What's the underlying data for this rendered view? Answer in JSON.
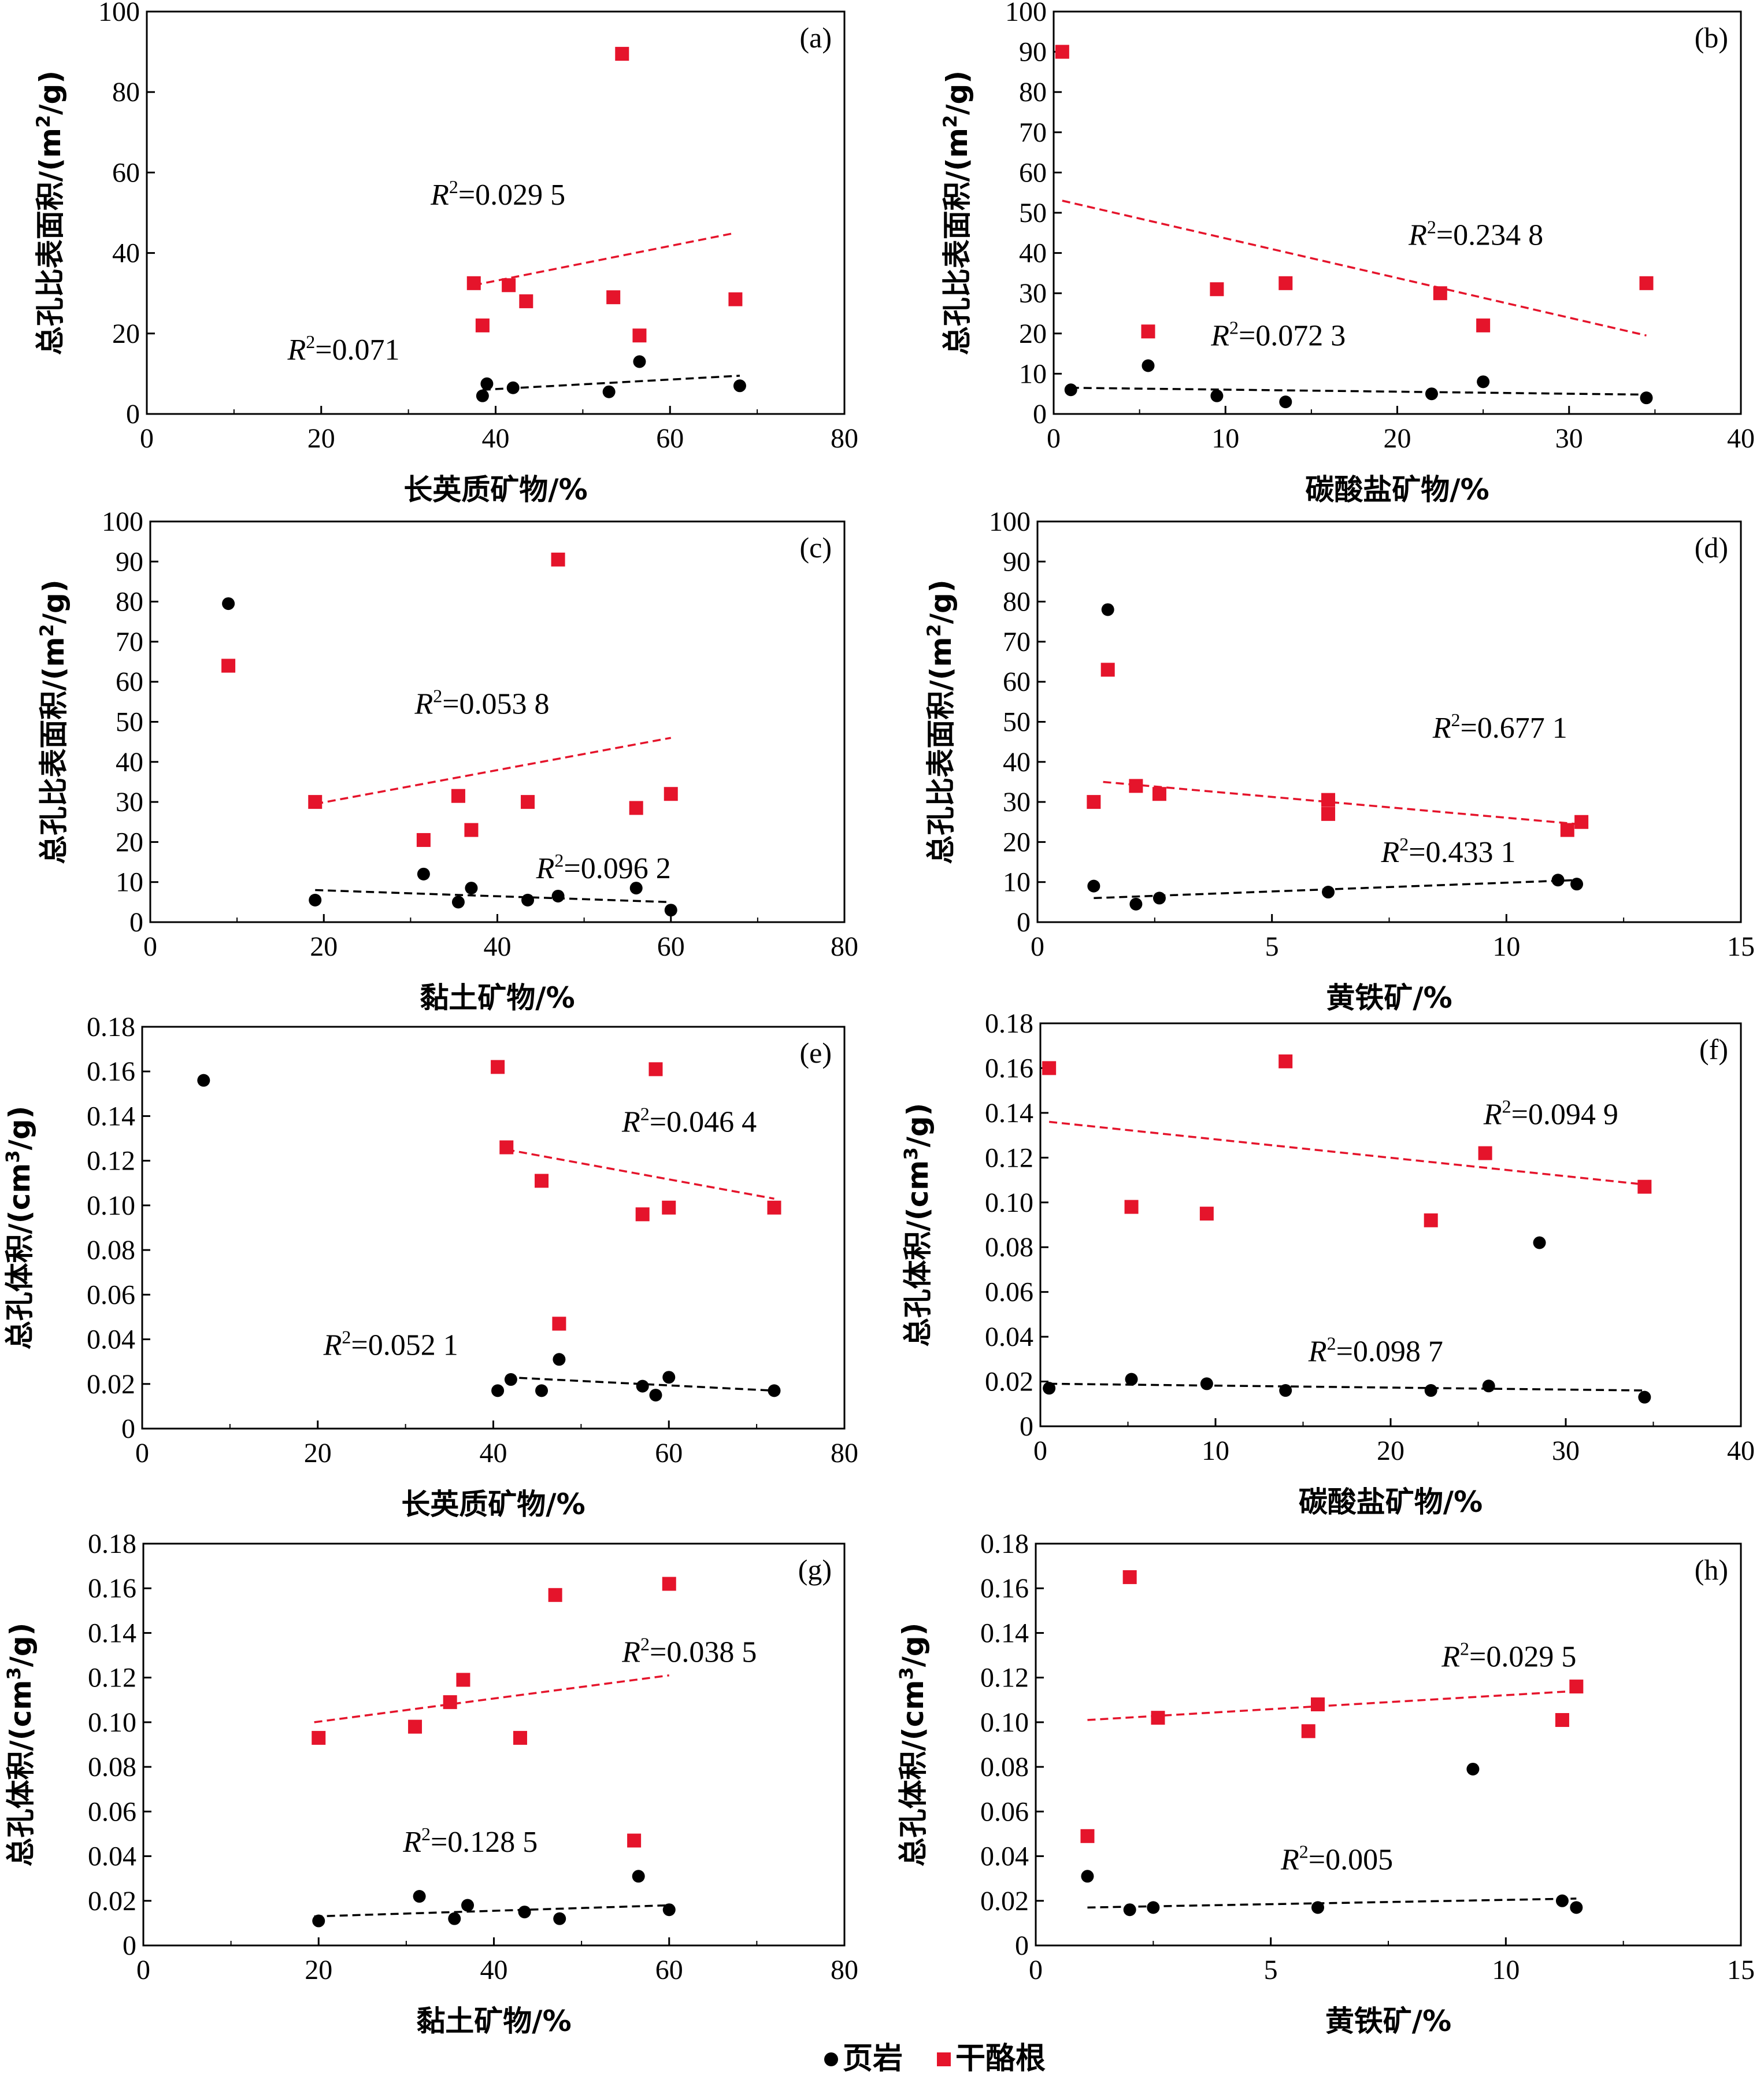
{
  "legend": {
    "position": "bottom-center",
    "items": [
      {
        "label": "页岩",
        "marker": "circle",
        "color": "#000000"
      },
      {
        "label": "干酪根",
        "marker": "square",
        "color": "#e5142b"
      }
    ]
  },
  "colors": {
    "shale": "#000000",
    "kerogen": "#e5142b",
    "kerogen_trend": "#e5142b",
    "shale_trend": "#000000"
  },
  "chart_data": [
    {
      "id": "a",
      "tag": "(a)",
      "type": "scatter",
      "xlabel": "长英质矿物/%",
      "ylabel": "总孔比表面积/(m²/g)",
      "ylabel_unit": "m",
      "ylabel_pow": "2",
      "xlim": [
        0,
        80
      ],
      "ylim": [
        0,
        100
      ],
      "xticks": [
        0,
        20,
        40,
        60,
        80
      ],
      "yticks": [
        0,
        20,
        40,
        60,
        80,
        100
      ],
      "series": [
        {
          "marker": "circle",
          "color": "#000000",
          "x": [
            38.5,
            39,
            42,
            53,
            56.5,
            68
          ],
          "y": [
            4.5,
            7.5,
            6.5,
            5.5,
            13,
            7
          ],
          "trend": {
            "x": [
              38.5,
              68
            ],
            "y": [
              6,
              9.5
            ],
            "color": "#000000",
            "r2": "0.071"
          }
        },
        {
          "marker": "square",
          "color": "#e5142b",
          "x": [
            54.5,
            37.5,
            38.5,
            41.5,
            43.5,
            53.5,
            56.5,
            67.5
          ],
          "y": [
            89.5,
            32.5,
            22,
            32,
            28,
            29,
            19.5,
            28.5
          ],
          "trend": {
            "x": [
              37.5,
              67.5
            ],
            "y": [
              32,
              45
            ],
            "color": "#e5142b",
            "r2": "0.029 5"
          }
        }
      ],
      "annotations": [
        {
          "kind": "r2",
          "series": 1,
          "r2": "0.029 5",
          "at": [
            48,
            52
          ]
        },
        {
          "kind": "r2",
          "series": 0,
          "r2": "0.071",
          "at": [
            29,
            13.5
          ]
        }
      ]
    },
    {
      "id": "b",
      "tag": "(b)",
      "type": "scatter",
      "xlabel": "碳酸盐矿物/%",
      "ylabel": "总孔比表面积/(m²/g)",
      "ylabel_unit": "m",
      "ylabel_pow": "2",
      "xlim": [
        0,
        40
      ],
      "ylim": [
        0,
        100
      ],
      "xticks": [
        0,
        10,
        20,
        30,
        40
      ],
      "yticks": [
        0,
        10,
        20,
        30,
        40,
        50,
        60,
        70,
        80,
        90,
        100
      ],
      "series": [
        {
          "marker": "circle",
          "color": "#000000",
          "x": [
            1,
            5.5,
            9.5,
            13.5,
            22,
            25,
            34.5
          ],
          "y": [
            6,
            12,
            4.5,
            3,
            5,
            8,
            4
          ],
          "trend": {
            "x": [
              1,
              34.5
            ],
            "y": [
              6.5,
              4.8
            ],
            "color": "#000000",
            "r2": "0.072 3"
          }
        },
        {
          "marker": "square",
          "color": "#e5142b",
          "x": [
            0.5,
            5.5,
            9.5,
            13.5,
            22.5,
            25,
            34.5
          ],
          "y": [
            90,
            20.5,
            31,
            32.5,
            30,
            22,
            32.5
          ],
          "trend": {
            "x": [
              0.5,
              34.5
            ],
            "y": [
              53,
              19.5
            ],
            "color": "#e5142b",
            "r2": "0.234 8"
          }
        }
      ],
      "annotations": [
        {
          "kind": "r2",
          "series": 1,
          "r2": "0.234 8",
          "at": [
            28.5,
            42
          ]
        },
        {
          "kind": "r2",
          "series": 0,
          "r2": "0.072 3",
          "at": [
            17,
            17
          ]
        }
      ]
    },
    {
      "id": "c",
      "tag": "(c)",
      "type": "scatter",
      "xlabel": "黏土矿物/%",
      "ylabel": "总孔比表面积/(m²/g)",
      "ylabel_unit": "m",
      "ylabel_pow": "2",
      "xlim": [
        0,
        80
      ],
      "ylim": [
        0,
        100
      ],
      "xticks": [
        0,
        20,
        40,
        60,
        80
      ],
      "yticks": [
        0,
        10,
        20,
        30,
        40,
        50,
        60,
        70,
        80,
        90,
        100
      ],
      "series": [
        {
          "marker": "circle",
          "color": "#000000",
          "x": [
            9,
            19,
            31.5,
            35.5,
            37,
            43.5,
            47,
            56,
            60
          ],
          "y": [
            79.5,
            5.5,
            12,
            5,
            8.5,
            5.5,
            6.5,
            8.5,
            3
          ],
          "trend": {
            "x": [
              19,
              60
            ],
            "y": [
              8,
              5
            ],
            "color": "#000000",
            "r2": "0.096 2"
          }
        },
        {
          "marker": "square",
          "color": "#e5142b",
          "x": [
            9,
            19,
            31.5,
            35.5,
            37,
            43.5,
            47,
            56,
            60
          ],
          "y": [
            64,
            30,
            20.5,
            31.5,
            23,
            30,
            90.5,
            28.5,
            32
          ],
          "trend": {
            "x": [
              19,
              60
            ],
            "y": [
              29.5,
              46
            ],
            "color": "#e5142b",
            "r2": "0.053 8"
          }
        }
      ],
      "annotations": [
        {
          "kind": "r2",
          "series": 1,
          "r2": "0.053 8",
          "at": [
            46,
            52
          ]
        },
        {
          "kind": "r2",
          "series": 0,
          "r2": "0.096 2",
          "at": [
            60,
            11
          ]
        }
      ]
    },
    {
      "id": "d",
      "tag": "(d)",
      "type": "scatter",
      "xlabel": "黄铁矿/%",
      "ylabel": "总孔比表面积/(m²/g)",
      "ylabel_unit": "m",
      "ylabel_pow": "2",
      "xlim": [
        0,
        15
      ],
      "ylim": [
        0,
        100
      ],
      "xticks": [
        0,
        5,
        10,
        15
      ],
      "yticks": [
        0,
        10,
        20,
        30,
        40,
        50,
        60,
        70,
        80,
        90,
        100
      ],
      "series": [
        {
          "marker": "circle",
          "color": "#000000",
          "x": [
            1.5,
            1.2,
            2.1,
            2.6,
            6.2,
            11.1,
            11.5
          ],
          "y": [
            78,
            9,
            4.5,
            6,
            7.5,
            10.5,
            9.5
          ],
          "trend": {
            "x": [
              1.2,
              11.5
            ],
            "y": [
              6,
              10.5
            ],
            "color": "#000000",
            "r2": "0.433 1"
          }
        },
        {
          "marker": "square",
          "color": "#e5142b",
          "x": [
            1.5,
            1.2,
            2.1,
            2.6,
            6.2,
            6.2,
            11.3,
            11.6
          ],
          "y": [
            63,
            30,
            34,
            32,
            30.5,
            27,
            23,
            25
          ],
          "trend": {
            "x": [
              1.4,
              11.5
            ],
            "y": [
              35,
              24.5
            ],
            "color": "#e5142b",
            "r2": "0.677 1"
          }
        }
      ],
      "annotations": [
        {
          "kind": "r2",
          "series": 1,
          "r2": "0.677 1",
          "at": [
            11.3,
            46
          ]
        },
        {
          "kind": "r2",
          "series": 0,
          "r2": "0.433 1",
          "at": [
            10.2,
            15
          ]
        }
      ]
    },
    {
      "id": "e",
      "tag": "(e)",
      "type": "scatter",
      "xlabel": "长英质矿物/%",
      "ylabel": "总孔体积/(cm³/g)",
      "ylabel_unit": "cm",
      "ylabel_pow": "3",
      "xlim": [
        0,
        80
      ],
      "ylim": [
        0,
        0.18
      ],
      "xticks": [
        0,
        20,
        40,
        60,
        80
      ],
      "yticks": [
        0,
        0.02,
        0.04,
        0.06,
        0.08,
        0.1,
        0.12,
        0.14,
        0.16,
        0.18
      ],
      "series": [
        {
          "marker": "circle",
          "color": "#000000",
          "x": [
            7,
            40.5,
            42,
            45.5,
            47.5,
            57,
            58.5,
            60,
            72
          ],
          "y": [
            0.156,
            0.017,
            0.022,
            0.017,
            0.031,
            0.019,
            0.015,
            0.023,
            0.017
          ],
          "trend": {
            "x": [
              41.5,
              72
            ],
            "y": [
              0.023,
              0.017
            ],
            "color": "#000000",
            "r2": "0.052 1"
          }
        },
        {
          "marker": "square",
          "color": "#e5142b",
          "x": [
            40.5,
            41.5,
            45.5,
            47.5,
            57,
            58.5,
            60,
            72
          ],
          "y": [
            0.162,
            0.126,
            0.111,
            0.047,
            0.096,
            0.161,
            0.099,
            0.099
          ],
          "trend": {
            "x": [
              41.5,
              72
            ],
            "y": [
              0.125,
              0.103
            ],
            "color": "#e5142b",
            "r2": "0.046 4"
          }
        }
      ],
      "annotations": [
        {
          "kind": "r2",
          "series": 1,
          "r2": "0.046 4",
          "at": [
            70,
            0.133
          ]
        },
        {
          "kind": "r2",
          "series": 0,
          "r2": "0.052 1",
          "at": [
            36,
            0.033
          ]
        }
      ]
    },
    {
      "id": "f",
      "tag": "(f)",
      "type": "scatter",
      "xlabel": "碳酸盐矿物/%",
      "ylabel": "总孔体积/(cm³/g)",
      "ylabel_unit": "cm",
      "ylabel_pow": "3",
      "xlim": [
        0,
        40
      ],
      "ylim": [
        0,
        0.18
      ],
      "xticks": [
        0,
        10,
        20,
        30,
        40
      ],
      "yticks": [
        0,
        0.02,
        0.04,
        0.06,
        0.08,
        0.1,
        0.12,
        0.14,
        0.16,
        0.18
      ],
      "series": [
        {
          "marker": "circle",
          "color": "#000000",
          "x": [
            0.5,
            5.2,
            9.5,
            14,
            22.3,
            25.6,
            28.5,
            34.5
          ],
          "y": [
            0.017,
            0.021,
            0.019,
            0.016,
            0.016,
            0.018,
            0.082,
            0.013
          ],
          "trend": {
            "x": [
              0.5,
              34.5
            ],
            "y": [
              0.019,
              0.016
            ],
            "color": "#000000",
            "r2": "0.098 7"
          }
        },
        {
          "marker": "square",
          "color": "#e5142b",
          "x": [
            0.5,
            5.2,
            9.5,
            14,
            22.3,
            25.4,
            34.5
          ],
          "y": [
            0.16,
            0.098,
            0.095,
            0.163,
            0.092,
            0.122,
            0.107
          ],
          "trend": {
            "x": [
              0.5,
              34.5
            ],
            "y": [
              0.136,
              0.108
            ],
            "color": "#e5142b",
            "r2": "0.094 9"
          }
        }
      ],
      "annotations": [
        {
          "kind": "r2",
          "series": 1,
          "r2": "0.094 9",
          "at": [
            33,
            0.135
          ]
        },
        {
          "kind": "r2",
          "series": 0,
          "r2": "0.098 7",
          "at": [
            23,
            0.029
          ]
        }
      ]
    },
    {
      "id": "g",
      "tag": "(g)",
      "type": "scatter",
      "xlabel": "黏土矿物/%",
      "ylabel": "总孔体积/(cm³/g)",
      "ylabel_unit": "cm",
      "ylabel_pow": "3",
      "xlim": [
        0,
        80
      ],
      "ylim": [
        0,
        0.18
      ],
      "xticks": [
        0,
        20,
        40,
        60,
        80
      ],
      "yticks": [
        0,
        0.02,
        0.04,
        0.06,
        0.08,
        0.1,
        0.12,
        0.14,
        0.16,
        0.18
      ],
      "series": [
        {
          "marker": "circle",
          "color": "#000000",
          "x": [
            20,
            31.5,
            35.5,
            37,
            43.5,
            47.5,
            56.5,
            60
          ],
          "y": [
            0.011,
            0.022,
            0.012,
            0.018,
            0.015,
            0.012,
            0.031,
            0.016
          ],
          "trend": {
            "x": [
              19.5,
              60
            ],
            "y": [
              0.013,
              0.018
            ],
            "color": "#000000",
            "r2": "0.128 5"
          }
        },
        {
          "marker": "square",
          "color": "#e5142b",
          "x": [
            20,
            31,
            35,
            36.5,
            43,
            47,
            56,
            60
          ],
          "y": [
            0.093,
            0.098,
            0.109,
            0.119,
            0.093,
            0.157,
            0.047,
            0.162
          ],
          "trend": {
            "x": [
              19.5,
              60
            ],
            "y": [
              0.1,
              0.121
            ],
            "color": "#e5142b",
            "r2": "0.038 5"
          }
        }
      ],
      "annotations": [
        {
          "kind": "r2",
          "series": 1,
          "r2": "0.038 5",
          "at": [
            70,
            0.127
          ]
        },
        {
          "kind": "r2",
          "series": 0,
          "r2": "0.128 5",
          "at": [
            45,
            0.042
          ]
        }
      ]
    },
    {
      "id": "h",
      "tag": "(h)",
      "type": "scatter",
      "xlabel": "黄铁矿/%",
      "ylabel": "总孔体积/(cm³/g)",
      "ylabel_unit": "cm",
      "ylabel_pow": "3",
      "xlim": [
        0,
        15
      ],
      "ylim": [
        0,
        0.18
      ],
      "xticks": [
        0,
        5,
        10,
        15
      ],
      "yticks": [
        0,
        0.02,
        0.04,
        0.06,
        0.08,
        0.1,
        0.12,
        0.14,
        0.16,
        0.18
      ],
      "series": [
        {
          "marker": "circle",
          "color": "#000000",
          "x": [
            1.1,
            2.0,
            2.5,
            6.0,
            9.3,
            11.2,
            11.5
          ],
          "y": [
            0.031,
            0.016,
            0.017,
            0.017,
            0.079,
            0.02,
            0.017
          ],
          "trend": {
            "x": [
              1.1,
              11.5
            ],
            "y": [
              0.017,
              0.021
            ],
            "color": "#000000",
            "r2": "0.005"
          }
        },
        {
          "marker": "square",
          "color": "#e5142b",
          "x": [
            1.1,
            2.0,
            2.6,
            5.8,
            6.0,
            11.2,
            11.5
          ],
          "y": [
            0.049,
            0.165,
            0.102,
            0.096,
            0.108,
            0.101,
            0.116
          ],
          "trend": {
            "x": [
              1.1,
              11.5
            ],
            "y": [
              0.101,
              0.114
            ],
            "color": "#e5142b",
            "r2": "0.029 5"
          }
        }
      ],
      "annotations": [
        {
          "kind": "r2",
          "series": 1,
          "r2": "0.029 5",
          "at": [
            11.5,
            0.125
          ]
        },
        {
          "kind": "r2",
          "series": 0,
          "r2": "0.005",
          "at": [
            7.6,
            0.034
          ]
        }
      ]
    }
  ]
}
